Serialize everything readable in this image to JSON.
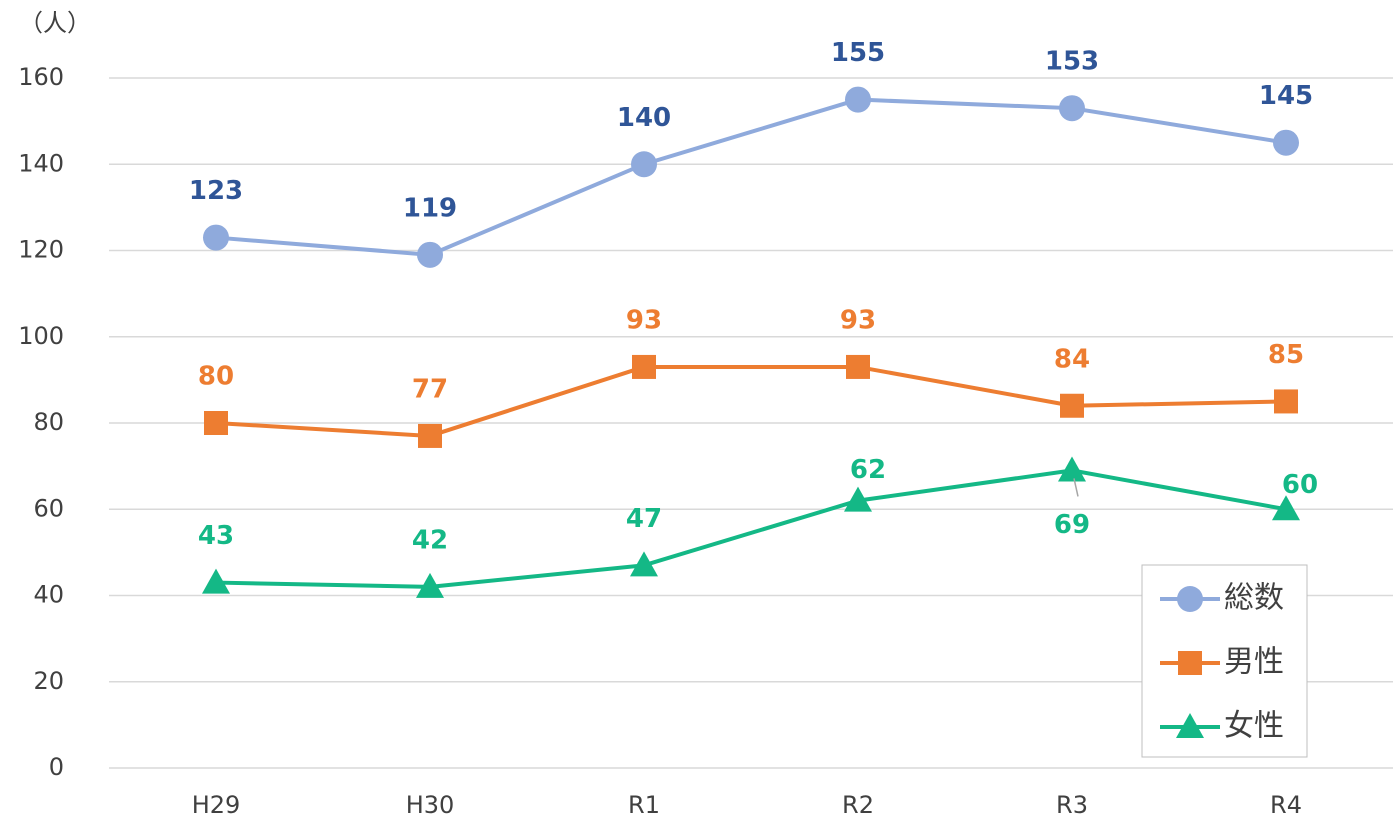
{
  "chart_data": {
    "type": "line",
    "y_label": "（人）",
    "categories": [
      "H29",
      "H30",
      "R1",
      "R2",
      "R3",
      "R4"
    ],
    "series": [
      {
        "name": "総数",
        "color": "#8faadc",
        "label_color": "#2f5597",
        "marker": "circle",
        "values": [
          123,
          119,
          140,
          155,
          153,
          145
        ]
      },
      {
        "name": "男性",
        "color": "#ed7d31",
        "label_color": "#ed7d31",
        "marker": "square",
        "values": [
          80,
          77,
          93,
          93,
          84,
          85
        ]
      },
      {
        "name": "女性",
        "color": "#14b886",
        "label_color": "#14b886",
        "marker": "triangle",
        "values": [
          43,
          42,
          47,
          62,
          69,
          60
        ]
      }
    ],
    "ylim": [
      0,
      160
    ],
    "yticks": [
      0,
      20,
      40,
      60,
      80,
      100,
      120,
      140,
      160
    ],
    "grid": true,
    "legend": "lower right"
  }
}
